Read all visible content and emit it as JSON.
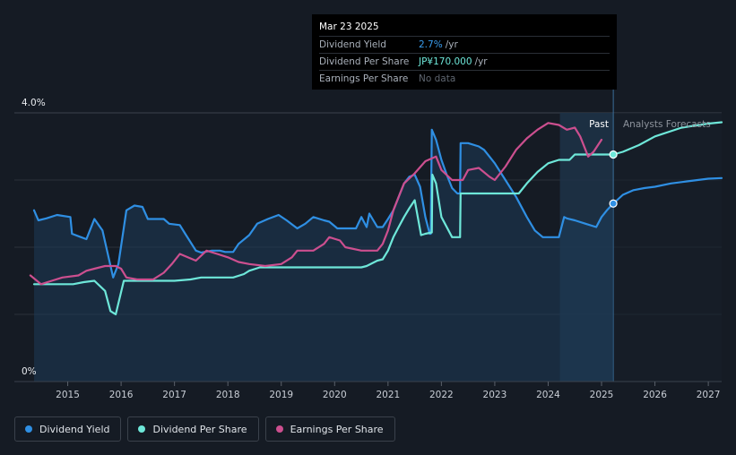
{
  "tooltip": {
    "date": "Mar 23 2025",
    "rows": [
      {
        "label": "Dividend Yield",
        "value": "2.7%",
        "unit": "/yr"
      },
      {
        "label": "Dividend Per Share",
        "value": "JP¥170.000",
        "unit": "/yr"
      },
      {
        "label": "Earnings Per Share",
        "value": "No data",
        "unit": ""
      }
    ]
  },
  "regions": {
    "past": "Past",
    "forecast": "Analysts Forecasts"
  },
  "legend": [
    {
      "label": "Dividend Yield",
      "color": "#2f8fe3"
    },
    {
      "label": "Dividend Per Share",
      "color": "#6ee7d9"
    },
    {
      "label": "Earnings Per Share",
      "color": "#cc4f8f"
    }
  ],
  "chart_data": {
    "type": "line",
    "title": "",
    "xlabel": "",
    "ylabel": "",
    "x_ticks": [
      "2015",
      "2016",
      "2017",
      "2018",
      "2019",
      "2020",
      "2021",
      "2022",
      "2023",
      "2024",
      "2025",
      "2026",
      "2027"
    ],
    "y_ticks": [
      "0%",
      "4.0%"
    ],
    "ylim": [
      0,
      4.0
    ],
    "xlim": [
      2014.0,
      2027.25
    ],
    "past_forecast_split": 2025.22,
    "marker_date": "Mar 23 2025",
    "series": [
      {
        "name": "Dividend Yield",
        "color": "#2f8fe3",
        "x": [
          2014.37,
          2014.45,
          2014.6,
          2014.8,
          2015.05,
          2015.08,
          2015.25,
          2015.35,
          2015.5,
          2015.65,
          2015.85,
          2015.95,
          2016.1,
          2016.25,
          2016.4,
          2016.5,
          2016.8,
          2016.9,
          2017.1,
          2017.2,
          2017.4,
          2017.5,
          2017.7,
          2017.85,
          2017.95,
          2018.1,
          2018.2,
          2018.4,
          2018.55,
          2018.75,
          2018.95,
          2019.1,
          2019.3,
          2019.45,
          2019.6,
          2019.8,
          2019.9,
          2020.05,
          2020.15,
          2020.4,
          2020.5,
          2020.6,
          2020.65,
          2020.8,
          2020.9,
          2021.0,
          2021.1,
          2021.2,
          2021.3,
          2021.4,
          2021.5,
          2021.6,
          2021.7,
          2021.78,
          2021.8,
          2021.82,
          2021.9,
          2022.0,
          2022.1,
          2022.2,
          2022.3,
          2022.35,
          2022.36,
          2022.5,
          2022.7,
          2022.8,
          2022.9,
          2023.0,
          2023.2,
          2023.4,
          2023.6,
          2023.75,
          2023.9,
          2024.1,
          2024.2,
          2024.3,
          2024.35,
          2024.5,
          2024.7,
          2024.9,
          2025.0,
          2025.1,
          2025.22,
          2025.4,
          2025.6,
          2025.8,
          2026.0,
          2026.3,
          2026.6,
          2027.0,
          2027.25
        ],
        "values": [
          2.55,
          2.4,
          2.43,
          2.48,
          2.45,
          2.2,
          2.15,
          2.12,
          2.42,
          2.25,
          1.55,
          1.75,
          2.55,
          2.62,
          2.6,
          2.42,
          2.42,
          2.35,
          2.33,
          2.2,
          1.95,
          1.92,
          1.95,
          1.95,
          1.93,
          1.93,
          2.05,
          2.18,
          2.35,
          2.42,
          2.48,
          2.4,
          2.28,
          2.35,
          2.45,
          2.4,
          2.38,
          2.28,
          2.28,
          2.28,
          2.45,
          2.3,
          2.5,
          2.3,
          2.3,
          2.42,
          2.55,
          2.75,
          2.95,
          3.05,
          3.08,
          2.9,
          2.45,
          2.2,
          2.2,
          3.75,
          3.6,
          3.3,
          3.08,
          2.88,
          2.8,
          2.8,
          3.55,
          3.55,
          3.5,
          3.45,
          3.35,
          3.25,
          3.0,
          2.75,
          2.45,
          2.25,
          2.15,
          2.15,
          2.15,
          2.45,
          2.43,
          2.4,
          2.35,
          2.3,
          2.45,
          2.55,
          2.65,
          2.78,
          2.85,
          2.88,
          2.9,
          2.95,
          2.98,
          3.02,
          3.03
        ]
      },
      {
        "name": "Dividend Per Share",
        "color": "#6ee7d9",
        "x": [
          2014.37,
          2014.6,
          2015.1,
          2015.3,
          2015.5,
          2015.7,
          2015.8,
          2015.9,
          2016.05,
          2016.5,
          2017.0,
          2017.3,
          2017.5,
          2017.6,
          2018.1,
          2018.3,
          2018.4,
          2018.6,
          2019.0,
          2020.0,
          2020.5,
          2020.6,
          2020.8,
          2020.9,
          2021.0,
          2021.1,
          2021.2,
          2021.3,
          2021.4,
          2021.5,
          2021.62,
          2021.7,
          2021.82,
          2021.83,
          2021.9,
          2022.0,
          2022.2,
          2022.35,
          2022.36,
          2022.5,
          2023.0,
          2023.3,
          2023.45,
          2023.6,
          2023.8,
          2024.0,
          2024.2,
          2024.4,
          2024.5,
          2025.0,
          2025.22,
          2025.4,
          2025.7,
          2026.0,
          2026.5,
          2027.0,
          2027.25
        ],
        "values": [
          1.45,
          1.45,
          1.45,
          1.48,
          1.5,
          1.35,
          1.05,
          1.0,
          1.5,
          1.5,
          1.5,
          1.52,
          1.55,
          1.55,
          1.55,
          1.6,
          1.65,
          1.7,
          1.7,
          1.7,
          1.7,
          1.72,
          1.8,
          1.82,
          1.95,
          2.15,
          2.3,
          2.45,
          2.58,
          2.7,
          2.18,
          2.2,
          2.22,
          3.08,
          2.95,
          2.45,
          2.15,
          2.15,
          2.8,
          2.8,
          2.8,
          2.8,
          2.8,
          2.95,
          3.12,
          3.25,
          3.3,
          3.3,
          3.38,
          3.38,
          3.38,
          3.42,
          3.52,
          3.65,
          3.78,
          3.84,
          3.86
        ]
      },
      {
        "name": "Earnings Per Share",
        "color": "#cc4f8f",
        "x": [
          2014.3,
          2014.5,
          2014.7,
          2014.9,
          2015.2,
          2015.35,
          2015.5,
          2015.7,
          2015.9,
          2016.0,
          2016.1,
          2016.3,
          2016.6,
          2016.8,
          2016.95,
          2017.1,
          2017.25,
          2017.4,
          2017.6,
          2017.8,
          2018.0,
          2018.2,
          2018.4,
          2018.7,
          2019.0,
          2019.2,
          2019.3,
          2019.6,
          2019.8,
          2019.9,
          2020.1,
          2020.2,
          2020.5,
          2020.8,
          2020.9,
          2021.0,
          2021.1,
          2021.3,
          2021.5,
          2021.7,
          2021.9,
          2022.0,
          2022.2,
          2022.4,
          2022.5,
          2022.7,
          2022.9,
          2023.0,
          2023.2,
          2023.4,
          2023.6,
          2023.8,
          2024.0,
          2024.2,
          2024.35,
          2024.5,
          2024.6,
          2024.75,
          2024.85,
          2025.0
        ],
        "values": [
          1.58,
          1.45,
          1.5,
          1.55,
          1.58,
          1.65,
          1.68,
          1.72,
          1.72,
          1.68,
          1.55,
          1.52,
          1.52,
          1.62,
          1.75,
          1.9,
          1.85,
          1.8,
          1.95,
          1.9,
          1.85,
          1.78,
          1.75,
          1.72,
          1.75,
          1.85,
          1.95,
          1.95,
          2.05,
          2.15,
          2.1,
          2.0,
          1.95,
          1.95,
          2.05,
          2.25,
          2.55,
          2.95,
          3.1,
          3.28,
          3.35,
          3.15,
          3.0,
          3.0,
          3.15,
          3.18,
          3.05,
          3.0,
          3.2,
          3.45,
          3.62,
          3.75,
          3.85,
          3.82,
          3.75,
          3.78,
          3.65,
          3.35,
          3.42,
          3.6
        ]
      }
    ],
    "highlight": [
      {
        "series": "Dividend Per Share",
        "x": 2025.22,
        "y": 3.38
      },
      {
        "series": "Dividend Yield",
        "x": 2025.22,
        "y": 2.65
      }
    ]
  }
}
